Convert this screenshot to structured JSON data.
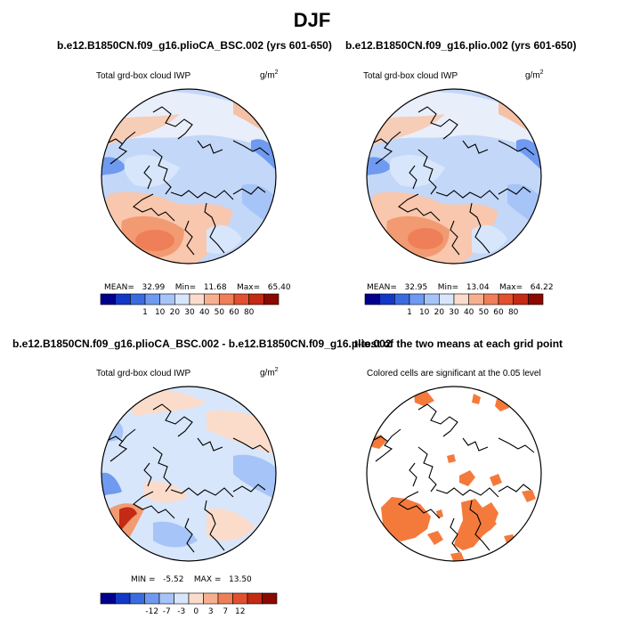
{
  "figure": {
    "title": "DJF"
  },
  "chart_data": [
    {
      "type": "heatmap",
      "projection": "north polar stereographic",
      "title": "b.e12.B1850CN.f09_g16.plioCA_BSC.002 (yrs 601-650)",
      "variable": "Total grd-box cloud IWP",
      "units": "g/m",
      "units_power": "2",
      "stats": {
        "mean_label": "MEAN=",
        "mean": "32.99",
        "min_label": "Min=",
        "min": "11.68",
        "max_label": "Max=",
        "max": "65.40"
      },
      "colorbar": {
        "levels": [
          "1",
          "10",
          "20",
          "30",
          "40",
          "50",
          "60",
          "80"
        ],
        "colors": [
          "#00008b",
          "#1338c8",
          "#3a6ce0",
          "#6f9af0",
          "#a6c4f7",
          "#d7e6fb",
          "#fbdccb",
          "#f7b08f",
          "#ef7f58",
          "#e2512f",
          "#c42a14",
          "#8a0a00"
        ]
      }
    },
    {
      "type": "heatmap",
      "projection": "north polar stereographic",
      "title": "b.e12.B1850CN.f09_g16.plio.002 (yrs 601-650)",
      "variable": "Total grd-box cloud IWP",
      "units": "g/m",
      "units_power": "2",
      "stats": {
        "mean_label": "MEAN=",
        "mean": "32.95",
        "min_label": "Min=",
        "min": "13.04",
        "max_label": "Max=",
        "max": "64.22"
      },
      "colorbar": {
        "levels": [
          "1",
          "10",
          "20",
          "30",
          "40",
          "50",
          "60",
          "80"
        ],
        "colors": [
          "#00008b",
          "#1338c8",
          "#3a6ce0",
          "#6f9af0",
          "#a6c4f7",
          "#d7e6fb",
          "#fbdccb",
          "#f7b08f",
          "#ef7f58",
          "#e2512f",
          "#c42a14",
          "#8a0a00"
        ]
      }
    },
    {
      "type": "heatmap",
      "projection": "north polar stereographic",
      "title": "b.e12.B1850CN.f09_g16.plioCA_BSC.002 - b.e12.B1850CN.f09_g16.plio.002",
      "variable": "Total grd-box cloud IWP",
      "units": "g/m",
      "units_power": "2",
      "stats": {
        "min_label": "MIN =",
        "min": "-5.52",
        "max_label": "MAX =",
        "max": "13.50"
      },
      "colorbar": {
        "levels": [
          "-12",
          "-7",
          "-3",
          "0",
          "3",
          "7",
          "12"
        ],
        "colors": [
          "#00008b",
          "#1338c8",
          "#3a6ce0",
          "#6f9af0",
          "#a6c4f7",
          "#d7e6fb",
          "#fbdccb",
          "#f7b08f",
          "#ef7f58",
          "#e2512f",
          "#c42a14",
          "#8a0a00"
        ]
      }
    },
    {
      "type": "heatmap",
      "projection": "north polar stereographic",
      "title": "t-test of the two means at each grid point",
      "variable": "Colored cells are significant at the 0.05 level",
      "significance_level": 0.05,
      "significant_color": "#f47a3c"
    }
  ]
}
